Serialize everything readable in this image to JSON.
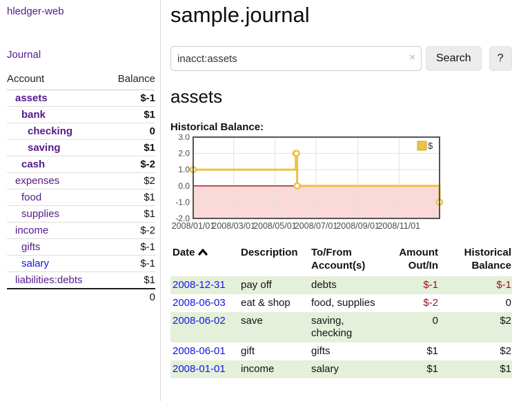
{
  "app": {
    "brand": "hledger-web",
    "nav_journal": "Journal"
  },
  "palette": {
    "link_visited": "#551a8b",
    "link_unvisited": "#1414e0",
    "negative_strong": "#9a1122",
    "negative_soft": "#c56d6e",
    "row_shade": "#e4f0da",
    "accent_yellow": "#edc240"
  },
  "sidebar": {
    "table": {
      "headers": {
        "account": "Account",
        "balance": "Balance"
      },
      "rows": [
        {
          "account": "assets",
          "balance": "$-1",
          "depth": 1,
          "bold": true,
          "neg": "strong",
          "link_style": "visited"
        },
        {
          "account": "bank",
          "balance": "$1",
          "depth": 2,
          "bold": true,
          "neg": "none",
          "link_style": "visited"
        },
        {
          "account": "checking",
          "balance": "0",
          "depth": 3,
          "bold": true,
          "neg": "none",
          "link_style": "visited"
        },
        {
          "account": "saving",
          "balance": "$1",
          "depth": 3,
          "bold": true,
          "neg": "none",
          "link_style": "visited"
        },
        {
          "account": "cash",
          "balance": "$-2",
          "depth": 2,
          "bold": true,
          "neg": "strong",
          "link_style": "visited"
        },
        {
          "account": "expenses",
          "balance": "$2",
          "depth": 1,
          "bold": false,
          "neg": "none",
          "link_style": "visited"
        },
        {
          "account": "food",
          "balance": "$1",
          "depth": 2,
          "bold": false,
          "neg": "none",
          "link_style": "visited"
        },
        {
          "account": "supplies",
          "balance": "$1",
          "depth": 2,
          "bold": false,
          "neg": "none",
          "link_style": "visited"
        },
        {
          "account": "income",
          "balance": "$-2",
          "depth": 1,
          "bold": false,
          "neg": "soft",
          "link_style": "visited"
        },
        {
          "account": "gifts",
          "balance": "$-1",
          "depth": 2,
          "bold": false,
          "neg": "soft",
          "link_style": "visited"
        },
        {
          "account": "salary",
          "balance": "$-1",
          "depth": 2,
          "bold": false,
          "neg": "soft",
          "link_style": "unvisited"
        },
        {
          "account": "liabilities:debts",
          "balance": "$1",
          "depth": 1,
          "bold": false,
          "neg": "none",
          "link_style": "visited"
        }
      ],
      "total": "0"
    }
  },
  "header": {
    "title": "sample.journal"
  },
  "search": {
    "value": "inacct:assets",
    "clear_icon": "×",
    "search_label": "Search",
    "help_label": "?"
  },
  "account_page": {
    "heading": "assets",
    "chart_title": "Historical Balance:"
  },
  "chart_data": {
    "type": "line",
    "step": true,
    "title": "Historical Balance:",
    "series": [
      {
        "name": "$",
        "color": "#edc240",
        "points": [
          [
            "2008-01-01",
            1
          ],
          [
            "2008-06-01",
            2
          ],
          [
            "2008-06-02",
            2
          ],
          [
            "2008-06-03",
            0
          ],
          [
            "2008-12-31",
            -1
          ]
        ]
      }
    ],
    "xlim": [
      "2008-01-01",
      "2008-12-31"
    ],
    "ylim": [
      -2,
      3
    ],
    "yticks": [
      3,
      2,
      1,
      0,
      -1,
      -2
    ],
    "ytick_labels": [
      "3.0",
      "2.0",
      "1.0",
      "0.0",
      "-1.0",
      "-2.0"
    ],
    "xticks": [
      "2008-01-01",
      "2008-03-01",
      "2008-05-01",
      "2008-07-01",
      "2008-09-01",
      "2008-11-01"
    ],
    "xtick_labels": [
      "2008/01/01",
      "2008/03/01",
      "2008/05/01",
      "2008/07/01",
      "2008/09/01",
      "2008/11/01"
    ],
    "legend": {
      "position": "top-right",
      "entries": [
        {
          "label": "$",
          "color": "#edc240"
        }
      ]
    },
    "grid": true,
    "grid_color": "#e0e0e0",
    "negative_region_color": "#fbd9d9",
    "zero_line_color": "#8b1515",
    "border_color": "#545454",
    "tick_color": "#4a4a4a"
  },
  "register": {
    "columns": [
      {
        "label": "Date",
        "sort": "ascending"
      },
      {
        "label": "Description"
      },
      {
        "label": "To/From Account(s)"
      },
      {
        "label": "Amount Out/In"
      },
      {
        "label": "Historical Balance"
      }
    ],
    "rows": [
      {
        "date": "2008-12-31",
        "description": "pay off",
        "accounts": "debts",
        "amount": "$-1",
        "balance": "$-1",
        "amount_negative": true,
        "balance_negative": true,
        "shaded": true
      },
      {
        "date": "2008-06-03",
        "description": "eat & shop",
        "accounts": "food, supplies",
        "amount": "$-2",
        "balance": "0",
        "amount_negative": true,
        "balance_negative": false,
        "shaded": false
      },
      {
        "date": "2008-06-02",
        "description": "save",
        "accounts": "saving, checking",
        "amount": "0",
        "balance": "$2",
        "amount_negative": false,
        "balance_negative": false,
        "shaded": true
      },
      {
        "date": "2008-06-01",
        "description": "gift",
        "accounts": "gifts",
        "amount": "$1",
        "balance": "$2",
        "amount_negative": false,
        "balance_negative": false,
        "shaded": false
      },
      {
        "date": "2008-01-01",
        "description": "income",
        "accounts": "salary",
        "amount": "$1",
        "balance": "$1",
        "amount_negative": false,
        "balance_negative": false,
        "shaded": true
      }
    ]
  }
}
